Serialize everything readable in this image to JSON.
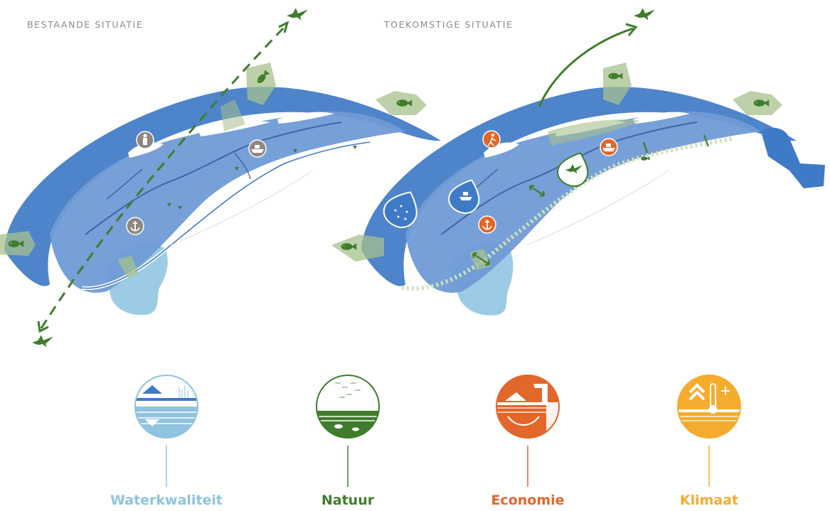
{
  "maps": {
    "left_title": "BESTAANDE SITUATIE",
    "right_title": "TOEKOMSTIGE SITUATIE"
  },
  "themes": [
    {
      "label": "Waterkwaliteit",
      "color": "#8fc3de",
      "icon": "water-quality-icon"
    },
    {
      "label": "Natuur",
      "color": "#3f7d2c",
      "icon": "nature-birds-fish-icon"
    },
    {
      "label": "Economie",
      "color": "#e2672a",
      "icon": "economy-harbour-icon"
    },
    {
      "label": "Klimaat",
      "color": "#f5ac2e",
      "icon": "climate-thermometer-icon"
    }
  ],
  "colors": {
    "sea": "#3f7ac6",
    "shallow": "#6f9bd5",
    "bay": "#9ccbe5",
    "nature": "#a6c08d",
    "green": "#3f7d2c",
    "existing_marker": "#8e8880",
    "future_marker": "#e2672a"
  }
}
